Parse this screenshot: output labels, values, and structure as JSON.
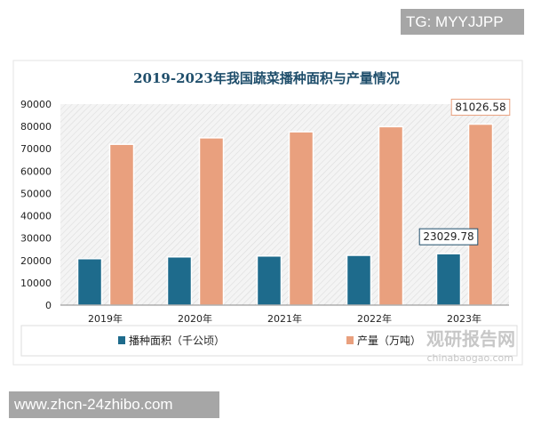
{
  "watermark_top": "TG: MYYJJPP",
  "watermark_bottom": "www.zhcn-24zhibo.com",
  "logo": {
    "name": "观研报告网",
    "url_text": "chinabaogao.com"
  },
  "chart_data": {
    "type": "bar",
    "title": "2019-2023年我国蔬菜播种面积与产量情况",
    "categories": [
      "2019年",
      "2020年",
      "2021年",
      "2022年",
      "2023年"
    ],
    "series": [
      {
        "name": "播种面积（千公顷）",
        "color": "#1e6b8c",
        "values": [
          20800,
          21600,
          22000,
          22300,
          23029.78
        ]
      },
      {
        "name": "产量（万吨）",
        "color": "#e9a07e",
        "values": [
          72000,
          74900,
          77600,
          79900,
          81026.58
        ]
      }
    ],
    "data_labels": [
      {
        "series": 0,
        "category": "2023年",
        "text": "23029.78"
      },
      {
        "series": 1,
        "category": "2023年",
        "text": "81026.58"
      }
    ],
    "ylim": [
      0,
      90000
    ],
    "yticks": [
      "0",
      "10000",
      "20000",
      "30000",
      "40000",
      "50000",
      "60000",
      "70000",
      "80000",
      "90000"
    ],
    "legend": "bottom",
    "grid": false,
    "background": "diagonal-hatch"
  }
}
